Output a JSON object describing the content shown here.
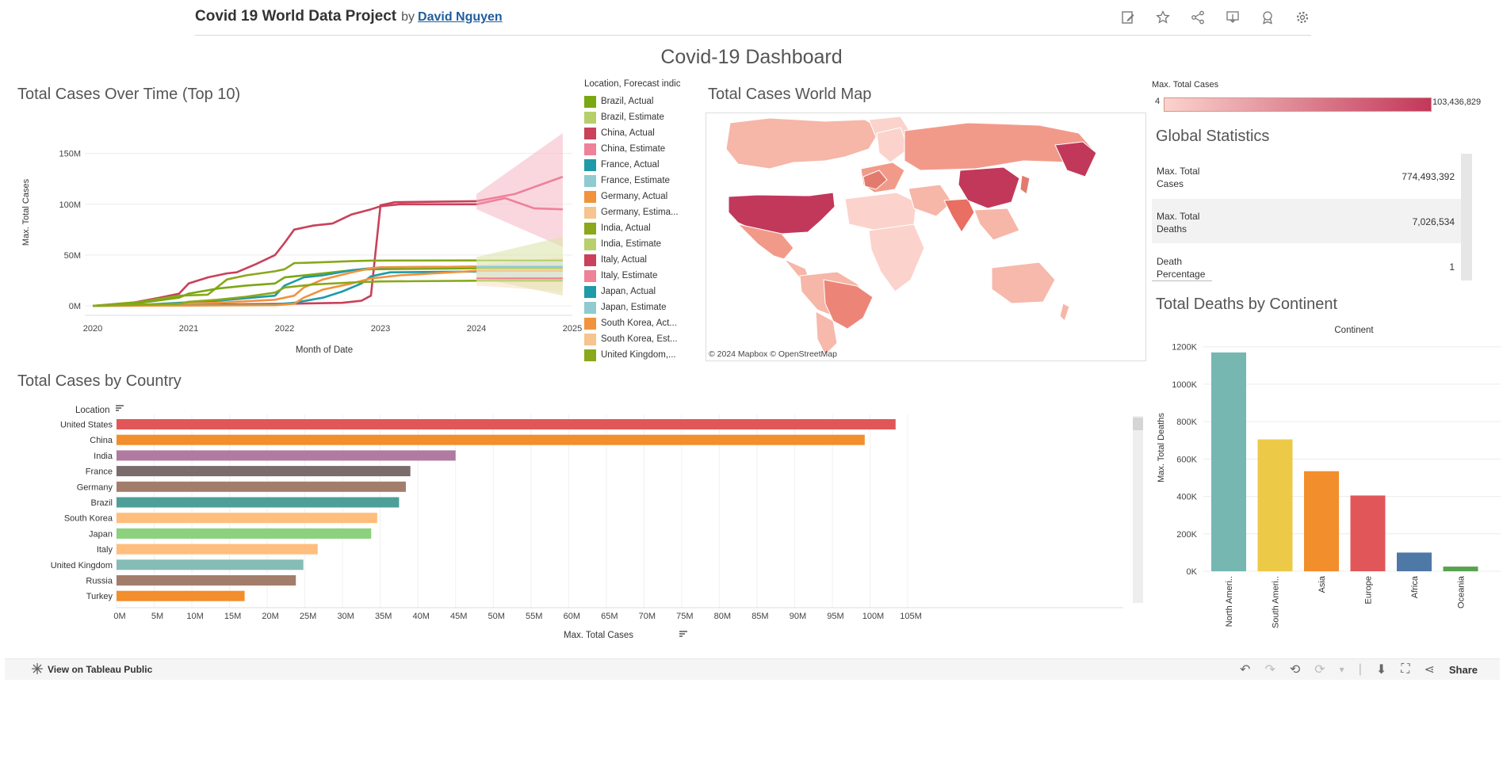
{
  "header": {
    "project_title": "Covid 19 World Data Project",
    "by": "by",
    "author": "David Nguyen",
    "icons": [
      "edit-icon",
      "star-icon",
      "share-icon",
      "download-icon",
      "badge-icon",
      "settings-icon"
    ]
  },
  "dashboard_title": "Covid-19 Dashboard",
  "line_chart": {
    "title": "Total Cases Over Time (Top 10)",
    "ylabel": "Max. Total Cases",
    "xlabel": "Month of Date",
    "yticks": [
      "0M",
      "50M",
      "100M",
      "150M"
    ],
    "xticks": [
      "2020",
      "2021",
      "2022",
      "2023",
      "2024",
      "2025"
    ]
  },
  "legend": {
    "title": "Location, Forecast indic",
    "items": [
      {
        "label": "Brazil, Actual",
        "color": "#7aa812"
      },
      {
        "label": "Brazil, Estimate",
        "color": "#b6cf6a"
      },
      {
        "label": "China, Actual",
        "color": "#c9415a"
      },
      {
        "label": "China, Estimate",
        "color": "#ef8199"
      },
      {
        "label": "France, Actual",
        "color": "#1f9aa8"
      },
      {
        "label": "France, Estimate",
        "color": "#8fcbd0"
      },
      {
        "label": "Germany, Actual",
        "color": "#f0933c"
      },
      {
        "label": "Germany, Estima...",
        "color": "#f6c48f"
      },
      {
        "label": "India, Actual",
        "color": "#8aa81a"
      },
      {
        "label": "India, Estimate",
        "color": "#b8cf6c"
      },
      {
        "label": "Italy, Actual",
        "color": "#c9415a"
      },
      {
        "label": "Italy, Estimate",
        "color": "#ef8199"
      },
      {
        "label": "Japan, Actual",
        "color": "#1f9aa8"
      },
      {
        "label": "Japan, Estimate",
        "color": "#8fcbd0"
      },
      {
        "label": "South Korea, Act...",
        "color": "#f0933c"
      },
      {
        "label": "South Korea, Est...",
        "color": "#f6c48f"
      },
      {
        "label": "United Kingdom,...",
        "color": "#8aa81a"
      }
    ]
  },
  "map": {
    "title": "Total Cases World Map",
    "attribution": "© 2024 Mapbox  © OpenStreetMap",
    "scale_title": "Max. Total Cases",
    "scale_min": "4",
    "scale_max": "103,436,829",
    "color_low": "#fbd3cc",
    "color_high": "#c2385a"
  },
  "global_stats": {
    "title": "Global Statistics",
    "rows": [
      {
        "label": "Max. Total Cases",
        "value": "774,493,392"
      },
      {
        "label": "Max. Total Deaths",
        "value": "7,026,534"
      },
      {
        "label": "Death Percentage",
        "value": "1"
      }
    ]
  },
  "bar_chart": {
    "title": "Total Cases by Country",
    "axis_header": "Location",
    "xlabel": "Max. Total Cases",
    "xticks": [
      "0M",
      "5M",
      "10M",
      "15M",
      "20M",
      "25M",
      "30M",
      "35M",
      "40M",
      "45M",
      "50M",
      "55M",
      "60M",
      "65M",
      "70M",
      "75M",
      "80M",
      "85M",
      "90M",
      "95M",
      "100M",
      "105M"
    ]
  },
  "continent_chart": {
    "title": "Total Deaths by Continent",
    "header": "Continent",
    "ylabel": "Max. Total Deaths",
    "yticks": [
      "0K",
      "200K",
      "400K",
      "600K",
      "800K",
      "1000K",
      "1200K"
    ]
  },
  "bottom_bar": {
    "tableau_public": "View on Tableau Public",
    "share": "Share"
  },
  "chart_data": [
    {
      "type": "line",
      "title": "Total Cases Over Time (Top 10)",
      "xlabel": "Month of Date",
      "ylabel": "Max. Total Cases",
      "xlim": [
        2020,
        2025
      ],
      "ylim_millions": [
        0,
        170
      ],
      "series": [
        {
          "name": "China, Actual",
          "color": "#c9415a",
          "points": [
            [
              2020.0,
              0.1
            ],
            [
              2021.0,
              1
            ],
            [
              2022.0,
              2
            ],
            [
              2022.3,
              2.5
            ],
            [
              2022.6,
              3
            ],
            [
              2022.8,
              5
            ],
            [
              2022.9,
              10
            ],
            [
              2023.0,
              99
            ],
            [
              2023.15,
              102
            ],
            [
              2024.0,
              103
            ]
          ]
        },
        {
          "name": "Italy, Actual",
          "color": "#c9415a",
          "points": [
            [
              2020.0,
              0
            ],
            [
              2020.3,
              1
            ],
            [
              2020.7,
              8
            ],
            [
              2020.9,
              12
            ],
            [
              2021.0,
              22
            ],
            [
              2021.2,
              28
            ],
            [
              2021.4,
              32
            ],
            [
              2021.5,
              33
            ],
            [
              2021.7,
              41
            ],
            [
              2021.9,
              50
            ],
            [
              2022.0,
              62
            ],
            [
              2022.1,
              75
            ],
            [
              2022.3,
              79
            ],
            [
              2022.5,
              81
            ],
            [
              2022.7,
              90
            ],
            [
              2022.9,
              95
            ],
            [
              2023.0,
              98
            ],
            [
              2023.2,
              100
            ],
            [
              2024.0,
              100
            ]
          ]
        },
        {
          "name": "India, Actual",
          "color": "#8aa81a",
          "points": [
            [
              2020.0,
              0
            ],
            [
              2020.5,
              4
            ],
            [
              2020.9,
              10
            ],
            [
              2021.2,
              11
            ],
            [
              2021.4,
              26
            ],
            [
              2021.6,
              30
            ],
            [
              2021.9,
              34
            ],
            [
              2022.0,
              36
            ],
            [
              2022.1,
              42
            ],
            [
              2022.4,
              43
            ],
            [
              2022.7,
              44
            ],
            [
              2022.9,
              44.5
            ],
            [
              2024.0,
              44.7
            ]
          ]
        },
        {
          "name": "Brazil, Actual",
          "color": "#7aa812",
          "points": [
            [
              2020.0,
              0
            ],
            [
              2020.5,
              3
            ],
            [
              2020.9,
              8
            ],
            [
              2021.0,
              12
            ],
            [
              2021.3,
              17
            ],
            [
              2021.6,
              20
            ],
            [
              2021.9,
              22
            ],
            [
              2022.0,
              28
            ],
            [
              2022.1,
              29
            ],
            [
              2022.4,
              32
            ],
            [
              2022.7,
              35
            ],
            [
              2022.9,
              36
            ],
            [
              2024.0,
              37
            ]
          ]
        },
        {
          "name": "France, Actual",
          "color": "#1f9aa8",
          "points": [
            [
              2020.0,
              0
            ],
            [
              2020.5,
              1
            ],
            [
              2020.9,
              3
            ],
            [
              2021.3,
              5
            ],
            [
              2021.9,
              10
            ],
            [
              2022.0,
              20
            ],
            [
              2022.2,
              28
            ],
            [
              2022.4,
              30
            ],
            [
              2022.7,
              35
            ],
            [
              2022.9,
              37
            ],
            [
              2023.1,
              38
            ],
            [
              2024.0,
              38.5
            ]
          ]
        },
        {
          "name": "Germany, Actual",
          "color": "#f0933c",
          "points": [
            [
              2020.0,
              0
            ],
            [
              2020.9,
              2
            ],
            [
              2021.3,
              3
            ],
            [
              2021.9,
              6
            ],
            [
              2022.1,
              10
            ],
            [
              2022.2,
              18
            ],
            [
              2022.4,
              26
            ],
            [
              2022.7,
              33
            ],
            [
              2022.9,
              37
            ],
            [
              2023.0,
              38
            ],
            [
              2024.0,
              38.5
            ]
          ]
        },
        {
          "name": "Japan, Actual",
          "color": "#1f9aa8",
          "points": [
            [
              2020.0,
              0
            ],
            [
              2021.0,
              0.5
            ],
            [
              2021.9,
              1.5
            ],
            [
              2022.1,
              3
            ],
            [
              2022.4,
              8
            ],
            [
              2022.6,
              14
            ],
            [
              2022.8,
              22
            ],
            [
              2022.9,
              29
            ],
            [
              2023.1,
              33
            ],
            [
              2024.0,
              33.8
            ]
          ]
        },
        {
          "name": "South Korea, Actual",
          "color": "#f0933c",
          "points": [
            [
              2020.0,
              0
            ],
            [
              2021.9,
              0.6
            ],
            [
              2022.1,
              2
            ],
            [
              2022.2,
              8
            ],
            [
              2022.4,
              16
            ],
            [
              2022.7,
              22
            ],
            [
              2022.9,
              27
            ],
            [
              2023.2,
              30
            ],
            [
              2024.0,
              34.5
            ]
          ]
        },
        {
          "name": "United Kingdom, Actual",
          "color": "#8aa81a",
          "points": [
            [
              2020.0,
              0
            ],
            [
              2020.9,
              2
            ],
            [
              2021.0,
              4
            ],
            [
              2021.3,
              6
            ],
            [
              2021.6,
              9
            ],
            [
              2021.9,
              13
            ],
            [
              2022.0,
              18
            ],
            [
              2022.3,
              21
            ],
            [
              2022.7,
              23
            ],
            [
              2023.0,
              24
            ],
            [
              2024.0,
              24.7
            ]
          ]
        },
        {
          "name": "China, Estimate",
          "color": "#ef8199",
          "points": [
            [
              2024.0,
              103
            ],
            [
              2024.4,
              110
            ],
            [
              2024.9,
              127
            ]
          ]
        },
        {
          "name": "Italy, Estimate",
          "color": "#ef8199",
          "points": [
            [
              2024.0,
              100
            ],
            [
              2024.3,
              106
            ],
            [
              2024.6,
              96
            ],
            [
              2024.9,
              95
            ]
          ]
        }
      ]
    },
    {
      "type": "bar",
      "title": "Total Cases by Country",
      "xlabel": "Max. Total Cases",
      "categories": [
        "United States",
        "China",
        "India",
        "France",
        "Germany",
        "Brazil",
        "South Korea",
        "Japan",
        "Italy",
        "United Kingdom",
        "Russia",
        "Turkey"
      ],
      "values_millions": [
        103.4,
        99.3,
        45.0,
        39.0,
        38.4,
        37.5,
        34.6,
        33.8,
        26.7,
        24.8,
        23.8,
        17.0
      ],
      "colors": [
        "#e15759",
        "#f28e2b",
        "#b07aa1",
        "#7a6c6c",
        "#a37d6b",
        "#4e9f98",
        "#ffbe7d",
        "#8cd17d",
        "#ffbe7d",
        "#86bcb6",
        "#a37d6b",
        "#f28e2b"
      ],
      "xlim_millions": [
        0,
        108
      ]
    },
    {
      "type": "bar",
      "title": "Total Deaths by Continent",
      "xlabel": "Continent",
      "ylabel": "Max. Total Deaths",
      "categories": [
        "North Ameri..",
        "South Ameri..",
        "Asia",
        "Europe",
        "Africa",
        "Oceania"
      ],
      "values_thousands": [
        1170,
        705,
        535,
        405,
        100,
        25
      ],
      "colors": [
        "#76b7b2",
        "#edc948",
        "#f28e2b",
        "#e15759",
        "#4e79a7",
        "#59a14f"
      ],
      "ylim_thousands": [
        0,
        1220
      ]
    }
  ]
}
